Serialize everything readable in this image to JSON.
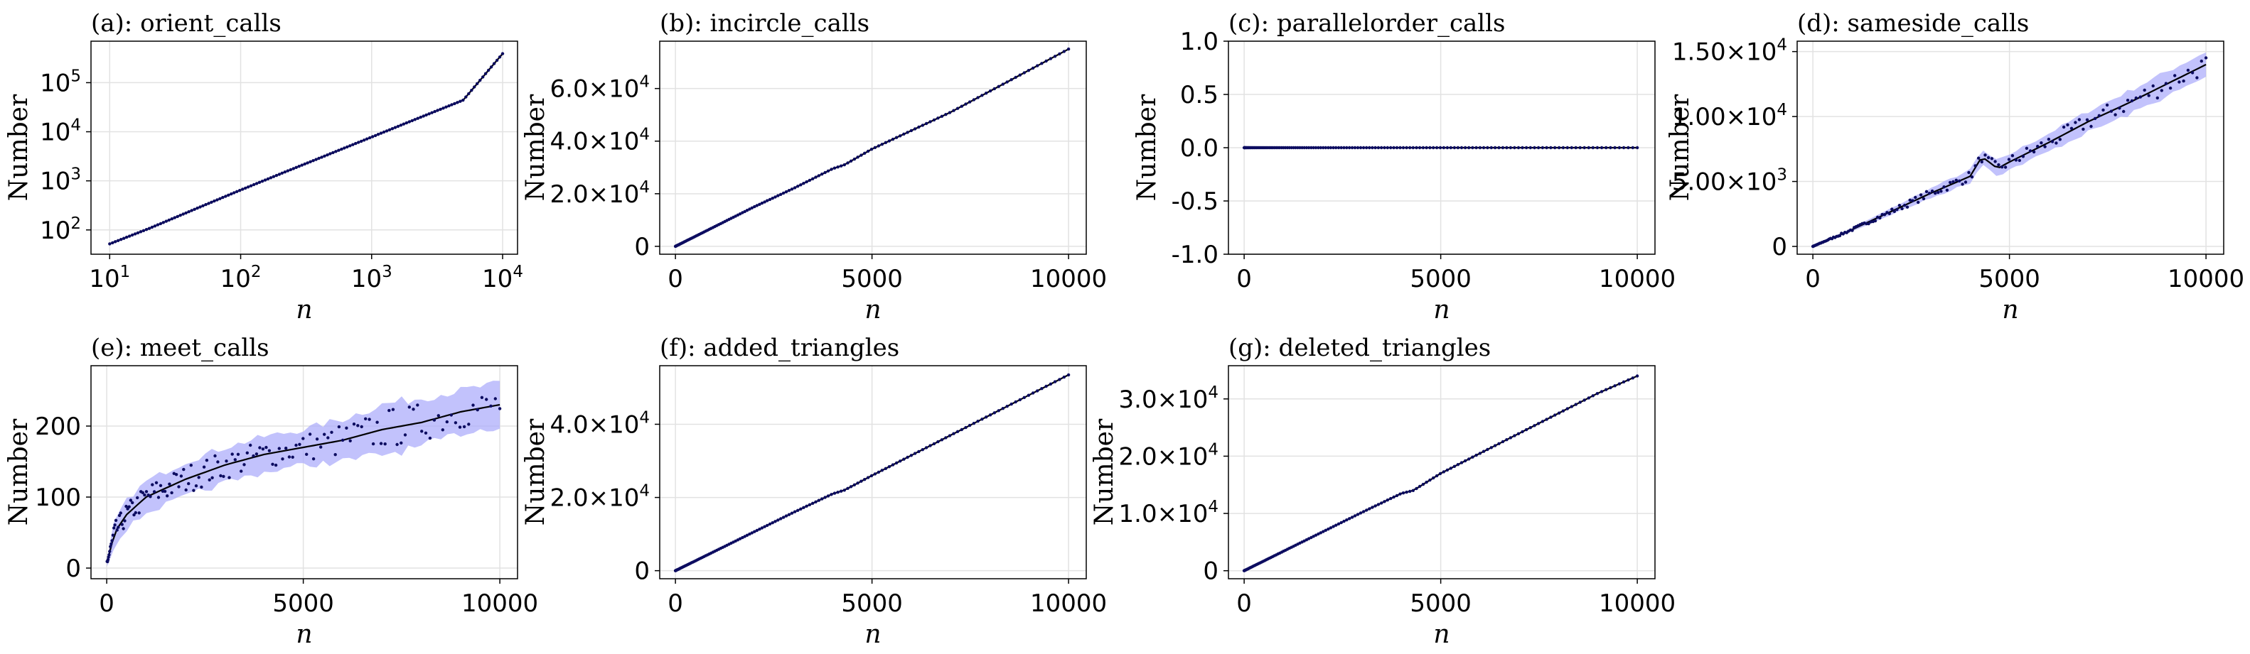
{
  "chart_data": [
    {
      "id": "a",
      "type": "scatter",
      "title": "(a): orient_calls",
      "xlabel": "n",
      "ylabel": "Number",
      "xscale": "log",
      "yscale": "log",
      "xlim": [
        7.2,
        13000
      ],
      "ylim": [
        32,
        700000
      ],
      "x_ticks": [
        {
          "value": 10,
          "label": "10",
          "exp": "1"
        },
        {
          "value": 100,
          "label": "10",
          "exp": "2"
        },
        {
          "value": 1000,
          "label": "10",
          "exp": "3"
        },
        {
          "value": 10000,
          "label": "10",
          "exp": "4"
        }
      ],
      "y_ticks": [
        {
          "value": 100,
          "label": "10",
          "exp": "2"
        },
        {
          "value": 1000,
          "label": "10",
          "exp": "3"
        },
        {
          "value": 10000,
          "label": "10",
          "exp": "4"
        },
        {
          "value": 100000,
          "label": "10",
          "exp": "5"
        }
      ],
      "grid": true,
      "series": [
        {
          "x": [
            10,
            20,
            50,
            100,
            200,
            500,
            1000,
            2000,
            5000,
            10000
          ],
          "y": [
            52,
            107,
            300,
            650,
            1380,
            3700,
            7800,
            16500,
            44000,
            390000
          ]
        }
      ]
    },
    {
      "id": "b",
      "type": "scatter",
      "title": "(b): incircle_calls",
      "xlabel": "n",
      "ylabel": "Number",
      "xlim": [
        -400,
        10450
      ],
      "ylim": [
        -3000,
        78000
      ],
      "x_ticks": [
        {
          "value": 0,
          "label": "0"
        },
        {
          "value": 5000,
          "label": "5000"
        },
        {
          "value": 10000,
          "label": "10000"
        }
      ],
      "y_ticks": [
        {
          "value": 0,
          "label": "0"
        },
        {
          "value": 20000,
          "label": "2.0×10",
          "exp": "4"
        },
        {
          "value": 40000,
          "label": "4.0×10",
          "exp": "4"
        },
        {
          "value": 60000,
          "label": "6.0×10",
          "exp": "4"
        }
      ],
      "grid": true,
      "series": [
        {
          "x": [
            0,
            1000,
            2000,
            3000,
            4000,
            4300,
            5000,
            6000,
            7000,
            8000,
            9000,
            10000
          ],
          "y": [
            0,
            7500,
            15000,
            22000,
            29500,
            31000,
            37000,
            44000,
            51000,
            59000,
            67000,
            75000
          ]
        }
      ]
    },
    {
      "id": "c",
      "type": "scatter",
      "title": "(c): parallelorder_calls",
      "xlabel": "n",
      "ylabel": "Number",
      "xlim": [
        -400,
        10450
      ],
      "ylim": [
        -1.0,
        1.0
      ],
      "x_ticks": [
        {
          "value": 0,
          "label": "0"
        },
        {
          "value": 5000,
          "label": "5000"
        },
        {
          "value": 10000,
          "label": "10000"
        }
      ],
      "y_ticks": [
        {
          "value": -1.0,
          "label": "-1.0"
        },
        {
          "value": -0.5,
          "label": "-0.5"
        },
        {
          "value": 0.0,
          "label": "0.0"
        },
        {
          "value": 0.5,
          "label": "0.5"
        },
        {
          "value": 1.0,
          "label": "1.0"
        }
      ],
      "grid": true,
      "series": [
        {
          "x": [
            0,
            2500,
            5000,
            7500,
            10000
          ],
          "y": [
            0,
            0,
            0,
            0,
            0
          ]
        }
      ]
    },
    {
      "id": "d",
      "type": "scatter",
      "title": "(d): sameside_calls",
      "xlabel": "n",
      "ylabel": "Number",
      "xlim": [
        -400,
        10450
      ],
      "ylim": [
        -600,
        15800
      ],
      "x_ticks": [
        {
          "value": 0,
          "label": "0"
        },
        {
          "value": 5000,
          "label": "5000"
        },
        {
          "value": 10000,
          "label": "10000"
        }
      ],
      "y_ticks": [
        {
          "value": 0,
          "label": "0"
        },
        {
          "value": 5000,
          "label": "5.00×10",
          "exp": "3"
        },
        {
          "value": 10000,
          "label": "1.00×10",
          "exp": "4"
        },
        {
          "value": 15000,
          "label": "1.50×10",
          "exp": "4"
        }
      ],
      "grid": true,
      "series": [
        {
          "x": [
            0,
            1000,
            2000,
            3000,
            4000,
            4300,
            4700,
            5000,
            6000,
            7000,
            8000,
            9000,
            10000
          ],
          "y": [
            0,
            1300,
            2700,
            4100,
            5400,
            6900,
            6000,
            6500,
            8000,
            9600,
            11000,
            12500,
            14000
          ],
          "band": [
            0,
            130,
            250,
            380,
            500,
            520,
            560,
            600,
            700,
            800,
            900,
            950,
            1000
          ]
        }
      ]
    },
    {
      "id": "e",
      "type": "scatter",
      "title": "(e): meet_calls",
      "xlabel": "n",
      "ylabel": "Number",
      "xlim": [
        -400,
        10450
      ],
      "ylim": [
        -15,
        285
      ],
      "x_ticks": [
        {
          "value": 0,
          "label": "0"
        },
        {
          "value": 5000,
          "label": "5000"
        },
        {
          "value": 10000,
          "label": "10000"
        }
      ],
      "y_ticks": [
        {
          "value": 0,
          "label": "0"
        },
        {
          "value": 100,
          "label": "100"
        },
        {
          "value": 200,
          "label": "200"
        }
      ],
      "grid": true,
      "series": [
        {
          "x": [
            10,
            200,
            500,
            1000,
            2000,
            3000,
            4000,
            5000,
            6000,
            7000,
            8000,
            9000,
            10000
          ],
          "y": [
            8,
            50,
            75,
            100,
            125,
            145,
            160,
            170,
            180,
            195,
            205,
            220,
            230
          ],
          "band": [
            5,
            18,
            20,
            22,
            25,
            25,
            25,
            25,
            30,
            35,
            35,
            30,
            30
          ]
        }
      ]
    },
    {
      "id": "f",
      "type": "scatter",
      "title": "(f): added_triangles",
      "xlabel": "n",
      "ylabel": "Number",
      "xlim": [
        -400,
        10450
      ],
      "ylim": [
        -2200,
        56000
      ],
      "x_ticks": [
        {
          "value": 0,
          "label": "0"
        },
        {
          "value": 5000,
          "label": "5000"
        },
        {
          "value": 10000,
          "label": "10000"
        }
      ],
      "y_ticks": [
        {
          "value": 0,
          "label": "0"
        },
        {
          "value": 20000,
          "label": "2.0×10",
          "exp": "4"
        },
        {
          "value": 40000,
          "label": "4.0×10",
          "exp": "4"
        }
      ],
      "grid": true,
      "series": [
        {
          "x": [
            0,
            1000,
            2000,
            3000,
            4000,
            4300,
            5000,
            6000,
            7000,
            8000,
            9000,
            10000
          ],
          "y": [
            0,
            5300,
            10600,
            15900,
            21000,
            22000,
            26000,
            31500,
            37000,
            42500,
            48000,
            53500
          ]
        }
      ]
    },
    {
      "id": "g",
      "type": "scatter",
      "title": "(g): deleted_triangles",
      "xlabel": "n",
      "ylabel": "Number",
      "xlim": [
        -400,
        10450
      ],
      "ylim": [
        -1400,
        35800
      ],
      "x_ticks": [
        {
          "value": 0,
          "label": "0"
        },
        {
          "value": 5000,
          "label": "5000"
        },
        {
          "value": 10000,
          "label": "10000"
        }
      ],
      "y_ticks": [
        {
          "value": 0,
          "label": "0"
        },
        {
          "value": 10000,
          "label": "1.0×10",
          "exp": "4"
        },
        {
          "value": 20000,
          "label": "2.0×10",
          "exp": "4"
        },
        {
          "value": 30000,
          "label": "3.0×10",
          "exp": "4"
        }
      ],
      "grid": true,
      "series": [
        {
          "x": [
            0,
            1000,
            2000,
            3000,
            4000,
            4300,
            5000,
            6000,
            7000,
            8000,
            9000,
            10000
          ],
          "y": [
            0,
            3400,
            6800,
            10200,
            13500,
            14000,
            17000,
            20500,
            24000,
            27500,
            31000,
            34000
          ]
        }
      ]
    }
  ]
}
